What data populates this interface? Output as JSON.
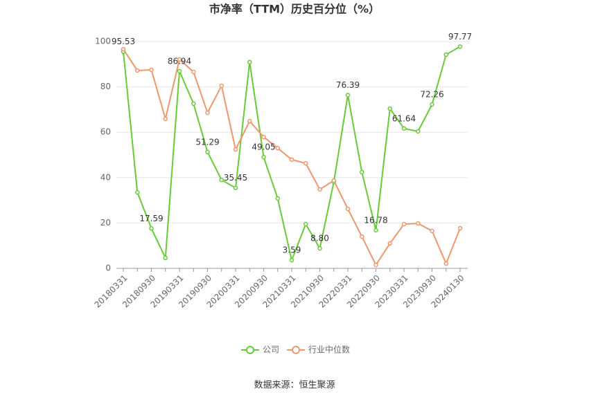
{
  "chart_data": {
    "type": "line",
    "title": "市净率（TTM）历史百分位（%）",
    "categories": [
      "20180331",
      null,
      "20180930",
      null,
      "20190331",
      null,
      "20190930",
      null,
      "20200331",
      null,
      "20200930",
      null,
      "20210331",
      null,
      "20210930",
      null,
      "20220331",
      null,
      "20220930",
      null,
      "20230331",
      null,
      "20230930",
      null,
      "20240130"
    ],
    "series": [
      {
        "name": "公司",
        "color": "#66cc33",
        "values": [
          95.53,
          33.5,
          17.59,
          4.6,
          86.94,
          72.6,
          51.29,
          39.0,
          35.45,
          90.9,
          49.05,
          30.8,
          3.59,
          19.5,
          8.8,
          38.1,
          76.39,
          42.4,
          16.78,
          70.4,
          61.64,
          60.4,
          72.26,
          94.2,
          97.77
        ],
        "value_labels": [
          "95.53",
          null,
          "17.59",
          null,
          "86.94",
          null,
          "51.29",
          null,
          "35.45",
          null,
          "49.05",
          null,
          "3.59",
          null,
          "8.80",
          null,
          "76.39",
          null,
          "16.78",
          null,
          "61.64",
          null,
          "72.26",
          null,
          "97.77"
        ]
      },
      {
        "name": "行业中位数",
        "color": "#f29567",
        "values": [
          96.6,
          87.2,
          87.5,
          65.9,
          92.1,
          86.6,
          68.6,
          80.5,
          52.4,
          64.9,
          57.9,
          53.0,
          47.9,
          46.3,
          34.8,
          38.7,
          26.2,
          14.0,
          1.5,
          11.0,
          19.5,
          19.8,
          16.5,
          2.1,
          17.7
        ]
      }
    ],
    "ylim": [
      0,
      100
    ],
    "yticks": [
      0,
      20,
      40,
      60,
      80,
      100
    ],
    "grid": true,
    "source": "数据来源：恒生聚源"
  }
}
